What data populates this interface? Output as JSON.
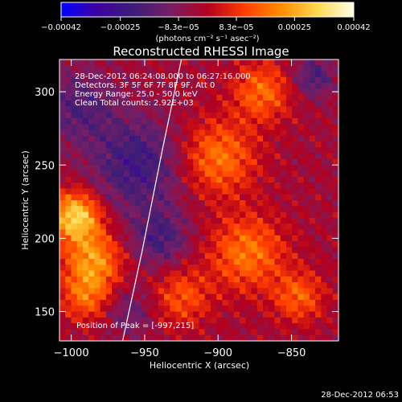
{
  "chart_data": {
    "type": "heatmap",
    "title": "Reconstructed RHESSI Image",
    "xlabel": "Heliocentric X (arcsec)",
    "ylabel": "Heliocentric Y (arcsec)",
    "xlim": [
      -1008,
      -818
    ],
    "ylim": [
      130,
      322
    ],
    "x_ticks": [
      {
        "value": -1000,
        "label": "−1000"
      },
      {
        "value": -950,
        "label": "−950"
      },
      {
        "value": -900,
        "label": "−900"
      },
      {
        "value": -850,
        "label": "−850"
      }
    ],
    "y_ticks": [
      {
        "value": 150,
        "label": "150"
      },
      {
        "value": 200,
        "label": "200"
      },
      {
        "value": 250,
        "label": "250"
      },
      {
        "value": 300,
        "label": "300"
      }
    ],
    "colorbar": {
      "range": [
        -0.00042,
        0.00042
      ],
      "ticks": [
        {
          "value": -0.00042,
          "label": "−0.00042"
        },
        {
          "value": -0.00025,
          "label": "−0.00025"
        },
        {
          "value": -8.3e-05,
          "label": "−8.3e−05"
        },
        {
          "value": 8.3e-05,
          "label": "8.3e−05"
        },
        {
          "value": 0.00025,
          "label": "0.00025"
        },
        {
          "value": 0.00042,
          "label": "0.00042"
        }
      ],
      "unit_label": "(photons cm⁻² s⁻¹ asec⁻²)"
    },
    "info_lines": [
      "28-Dec-2012 06:24:08.000 to 06:27:16.000",
      "Detectors: 3F 5F 6F 7F 8F 9F, Att 0",
      "Energy Range: 25.0 - 50.0 keV",
      "Clean     Total counts: 2.92E+03"
    ],
    "peak_label": "Position of Peak = [-997,215]",
    "peak": {
      "x": -997,
      "y": 215
    },
    "limb_curve": [
      [
        -965,
        130
      ],
      [
        -952,
        190
      ],
      [
        -938,
        260
      ],
      [
        -925,
        322
      ]
    ],
    "hotspots": [
      {
        "x": -997,
        "y": 215,
        "amp": 1.0,
        "sigma": 12
      },
      {
        "x": -985,
        "y": 185,
        "amp": 0.7,
        "sigma": 14
      },
      {
        "x": -990,
        "y": 160,
        "amp": 0.5,
        "sigma": 12
      },
      {
        "x": -900,
        "y": 255,
        "amp": 0.6,
        "sigma": 18
      },
      {
        "x": -870,
        "y": 300,
        "amp": 0.55,
        "sigma": 14
      },
      {
        "x": -880,
        "y": 190,
        "amp": 0.6,
        "sigma": 18
      },
      {
        "x": -845,
        "y": 160,
        "amp": 0.5,
        "sigma": 12
      },
      {
        "x": -925,
        "y": 160,
        "amp": 0.45,
        "sigma": 14
      }
    ],
    "coldspots": [
      {
        "x": -955,
        "y": 250,
        "amp": 0.55,
        "sigma": 22
      },
      {
        "x": -940,
        "y": 200,
        "amp": 0.45,
        "sigma": 14
      },
      {
        "x": -995,
        "y": 290,
        "amp": 0.4,
        "sigma": 18
      },
      {
        "x": -835,
        "y": 310,
        "amp": 0.45,
        "sigma": 10
      },
      {
        "x": -960,
        "y": 150,
        "amp": 0.3,
        "sigma": 12
      }
    ],
    "colormap": [
      "#0000ff",
      "#4000a0",
      "#3c1e78",
      "#781e64",
      "#b4001e",
      "#ff3c00",
      "#ff8c00",
      "#ffd850",
      "#ffffe6"
    ]
  },
  "footer": {
    "timestamp": "28-Dec-2012 06:53"
  }
}
